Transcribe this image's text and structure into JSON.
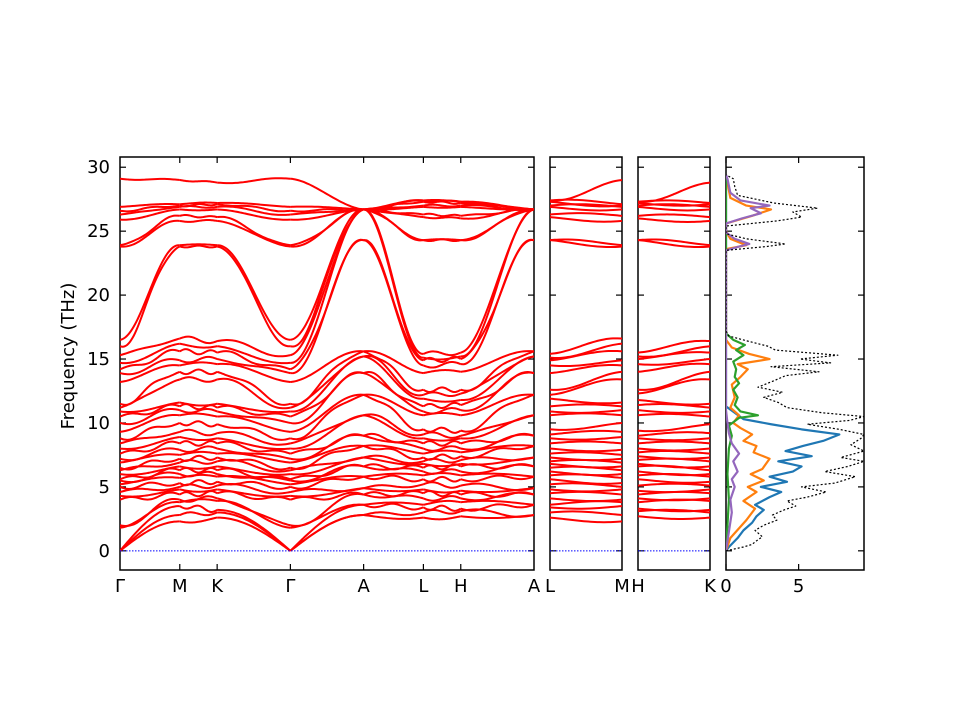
{
  "chart_data": {
    "type": "line",
    "ylabel": "Frequency (THz)",
    "ylim": [
      -1.5,
      30.8
    ],
    "yticks": [
      0,
      5,
      10,
      15,
      20,
      25,
      30
    ],
    "colors": {
      "bands": "#ff0000",
      "zero_line": "#0000ff",
      "dos_total": "#000000",
      "pdos": [
        "#1f77b4",
        "#ff7f0e",
        "#2ca02c",
        "#9467bd"
      ]
    },
    "panels": [
      {
        "id": "p1",
        "segments": [
          {
            "from": "Γ",
            "to": "M",
            "length": 0.4
          },
          {
            "from": "M",
            "to": "K",
            "length": 0.25
          },
          {
            "from": "K",
            "to": "Γ",
            "length": 0.49
          },
          {
            "from": "Γ",
            "to": "A",
            "length": 0.49
          },
          {
            "from": "A",
            "to": "L",
            "length": 0.4
          },
          {
            "from": "L",
            "to": "H",
            "length": 0.25
          },
          {
            "from": "H",
            "to": "A",
            "length": 0.49
          }
        ],
        "ticks": [
          "Γ",
          "M",
          "K",
          "Γ",
          "A",
          "L",
          "H",
          "A"
        ],
        "bands": {
          "gamma": [
            0,
            0,
            0,
            1.8,
            2.0,
            4.0,
            4.3,
            4.6,
            5.0,
            5.2,
            5.5,
            5.6,
            6.0,
            6.3,
            6.5,
            6.9,
            7.2,
            7.6,
            8.0,
            8.4,
            8.8,
            9.3,
            10.0,
            10.5,
            10.9,
            11.2,
            11.5,
            13.2,
            13.9,
            14.2,
            14.7,
            15.3,
            16.0,
            16.5,
            23.8,
            23.9,
            25.9,
            26.3,
            26.6,
            26.9,
            29.1
          ],
          "A": [
            2.8,
            2.8,
            3.6,
            3.6,
            4.4,
            4.4,
            4.9,
            4.9,
            5.8,
            5.8,
            6.6,
            6.6,
            7.3,
            7.3,
            8.2,
            8.2,
            9.0,
            9.0,
            10.6,
            10.6,
            12.2,
            12.2,
            13.9,
            13.9,
            15.2,
            15.2,
            15.6,
            15.6,
            24.3,
            24.3,
            26.7,
            26.7,
            26.7,
            26.7,
            26.7,
            26.7,
            26.7,
            26.7,
            26.7,
            26.7,
            26.7
          ],
          "M": [
            2.3,
            2.8,
            3.5,
            3.8,
            4.0,
            4.4,
            4.8,
            5.0,
            5.3,
            5.7,
            6.0,
            6.3,
            6.6,
            6.9,
            7.2,
            7.5,
            7.9,
            8.4,
            8.9,
            9.3,
            10.0,
            10.6,
            11.0,
            11.3,
            11.6,
            13.4,
            14.0,
            14.5,
            14.9,
            15.6,
            16.2,
            16.6,
            23.8,
            23.9,
            25.8,
            26.2,
            26.7,
            26.9,
            27.0,
            27.1,
            29.0
          ],
          "K": [
            2.6,
            3.0,
            3.2,
            3.9,
            4.1,
            4.5,
            4.8,
            5.1,
            5.4,
            5.8,
            6.0,
            6.3,
            6.6,
            7.0,
            7.3,
            7.6,
            8.0,
            8.4,
            8.8,
            9.2,
            9.9,
            10.5,
            10.9,
            11.2,
            11.5,
            13.4,
            14.0,
            14.6,
            15.0,
            15.5,
            16.0,
            16.4,
            23.8,
            23.9,
            25.8,
            26.1,
            26.7,
            26.9,
            27.1,
            27.2,
            28.8
          ],
          "L": [
            2.6,
            3.0,
            3.4,
            3.6,
            4.1,
            4.5,
            4.8,
            5.2,
            5.6,
            5.9,
            6.2,
            6.5,
            6.8,
            7.0,
            7.3,
            7.6,
            8.0,
            8.4,
            8.8,
            9.1,
            9.5,
            10.6,
            10.9,
            11.3,
            11.9,
            12.2,
            12.6,
            13.9,
            14.5,
            14.9,
            15.1,
            15.4,
            24.3,
            24.3,
            26.1,
            26.3,
            26.9,
            27.0,
            27.3,
            27.4,
            27.4
          ],
          "H": [
            2.7,
            3.1,
            3.3,
            3.8,
            4.1,
            4.4,
            4.7,
            5.1,
            5.6,
            5.9,
            6.2,
            6.6,
            6.8,
            7.1,
            7.4,
            7.7,
            8.0,
            8.4,
            8.8,
            9.0,
            9.4,
            10.6,
            11.0,
            11.4,
            11.8,
            12.3,
            12.6,
            14.0,
            14.6,
            15.0,
            15.2,
            15.5,
            24.3,
            24.3,
            26.0,
            26.2,
            26.9,
            27.0,
            27.2,
            27.3,
            27.3
          ]
        }
      },
      {
        "id": "p2",
        "from": "L",
        "to": "M",
        "ticks": [
          "L",
          "M"
        ]
      },
      {
        "id": "p3",
        "from": "H",
        "to": "K",
        "ticks": [
          "H",
          "K"
        ]
      },
      {
        "id": "dos",
        "xlim": [
          0,
          9.5
        ],
        "xticks": [
          0,
          5
        ],
        "total": [
          [
            0.0,
            0.0
          ],
          [
            0.4,
            0.1
          ],
          [
            1.2,
            0.3
          ],
          [
            1.8,
            0.5
          ],
          [
            2.0,
            0.7
          ],
          [
            2.5,
            1.1
          ],
          [
            2.0,
            1.6
          ],
          [
            2.6,
            2.0
          ],
          [
            3.5,
            2.4
          ],
          [
            3.2,
            2.8
          ],
          [
            4.0,
            3.2
          ],
          [
            4.8,
            3.5
          ],
          [
            4.2,
            3.9
          ],
          [
            5.6,
            4.2
          ],
          [
            6.9,
            4.6
          ],
          [
            5.2,
            5.0
          ],
          [
            7.5,
            5.3
          ],
          [
            8.9,
            5.8
          ],
          [
            6.8,
            6.2
          ],
          [
            8.4,
            6.6
          ],
          [
            9.5,
            7.0
          ],
          [
            7.9,
            7.3
          ],
          [
            9.5,
            7.8
          ],
          [
            8.6,
            8.3
          ],
          [
            9.3,
            8.8
          ],
          [
            9.5,
            9.1
          ],
          [
            7.8,
            9.5
          ],
          [
            5.6,
            9.9
          ],
          [
            8.5,
            10.2
          ],
          [
            9.5,
            10.5
          ],
          [
            6.6,
            10.8
          ],
          [
            4.2,
            11.2
          ],
          [
            3.6,
            11.6
          ],
          [
            2.6,
            12.0
          ],
          [
            3.9,
            12.4
          ],
          [
            2.2,
            12.8
          ],
          [
            3.3,
            13.3
          ],
          [
            4.1,
            13.7
          ],
          [
            6.4,
            14.0
          ],
          [
            3.1,
            14.4
          ],
          [
            7.2,
            14.7
          ],
          [
            5.1,
            15.0
          ],
          [
            7.7,
            15.3
          ],
          [
            3.4,
            15.7
          ],
          [
            2.9,
            16.0
          ],
          [
            1.5,
            16.4
          ],
          [
            0.2,
            16.8
          ],
          [
            0.0,
            17.2
          ],
          [
            0.0,
            23.5
          ],
          [
            2.8,
            23.8
          ],
          [
            4.1,
            24.0
          ],
          [
            1.4,
            24.4
          ],
          [
            0.0,
            24.8
          ],
          [
            0.0,
            25.4
          ],
          [
            3.5,
            25.8
          ],
          [
            5.2,
            26.1
          ],
          [
            4.6,
            26.5
          ],
          [
            6.3,
            26.8
          ],
          [
            3.3,
            27.2
          ],
          [
            0.8,
            27.8
          ],
          [
            0.6,
            28.5
          ],
          [
            0.5,
            29.1
          ],
          [
            0.0,
            29.4
          ]
        ],
        "pdos": [
          {
            "color": "#1f77b4",
            "points": [
              [
                0.0,
                0.0
              ],
              [
                0.2,
                0.3
              ],
              [
                0.8,
                1.0
              ],
              [
                1.2,
                1.6
              ],
              [
                1.8,
                2.2
              ],
              [
                2.1,
                2.7
              ],
              [
                2.6,
                3.2
              ],
              [
                2.0,
                3.6
              ],
              [
                3.0,
                4.2
              ],
              [
                3.8,
                4.6
              ],
              [
                2.4,
                5.0
              ],
              [
                4.2,
                5.4
              ],
              [
                3.0,
                5.8
              ],
              [
                4.6,
                6.2
              ],
              [
                5.2,
                6.6
              ],
              [
                3.6,
                7.0
              ],
              [
                5.9,
                7.4
              ],
              [
                4.1,
                7.8
              ],
              [
                5.3,
                8.2
              ],
              [
                6.7,
                8.6
              ],
              [
                7.8,
                9.1
              ],
              [
                5.2,
                9.5
              ],
              [
                3.1,
                9.9
              ],
              [
                1.2,
                10.3
              ],
              [
                0.6,
                10.8
              ],
              [
                0.0,
                11.3
              ],
              [
                0.0,
                29.4
              ]
            ]
          },
          {
            "color": "#ff7f0e",
            "points": [
              [
                0.0,
                0.0
              ],
              [
                0.3,
                1.0
              ],
              [
                1.4,
                2.4
              ],
              [
                2.0,
                3.3
              ],
              [
                1.2,
                3.9
              ],
              [
                2.1,
                4.6
              ],
              [
                1.5,
                5.0
              ],
              [
                2.6,
                5.5
              ],
              [
                1.7,
                6.0
              ],
              [
                2.5,
                6.4
              ],
              [
                3.0,
                7.2
              ],
              [
                1.9,
                7.7
              ],
              [
                2.1,
                8.2
              ],
              [
                1.2,
                8.6
              ],
              [
                1.8,
                9.1
              ],
              [
                1.0,
                9.6
              ],
              [
                0.5,
                10.0
              ],
              [
                0.9,
                10.6
              ],
              [
                0.3,
                11.2
              ],
              [
                0.6,
                12.0
              ],
              [
                0.4,
                13.0
              ],
              [
                1.0,
                13.6
              ],
              [
                1.5,
                14.2
              ],
              [
                0.8,
                14.6
              ],
              [
                3.0,
                15.0
              ],
              [
                1.6,
                15.4
              ],
              [
                0.4,
                15.9
              ],
              [
                0.0,
                16.5
              ],
              [
                0.0,
                23.6
              ],
              [
                1.4,
                23.9
              ],
              [
                0.3,
                24.4
              ],
              [
                0.0,
                25.0
              ],
              [
                0.0,
                25.6
              ],
              [
                1.8,
                26.2
              ],
              [
                3.1,
                26.7
              ],
              [
                1.4,
                27.0
              ],
              [
                0.3,
                27.6
              ],
              [
                0.0,
                29.4
              ]
            ]
          },
          {
            "color": "#2ca02c",
            "points": [
              [
                0.0,
                0.0
              ],
              [
                0.1,
                2.0
              ],
              [
                0.2,
                4.0
              ],
              [
                0.1,
                6.0
              ],
              [
                0.2,
                8.0
              ],
              [
                0.4,
                9.0
              ],
              [
                0.2,
                9.8
              ],
              [
                0.9,
                10.4
              ],
              [
                2.2,
                10.6
              ],
              [
                1.0,
                10.9
              ],
              [
                0.6,
                11.4
              ],
              [
                0.8,
                12.0
              ],
              [
                0.5,
                12.6
              ],
              [
                0.9,
                13.1
              ],
              [
                0.6,
                13.6
              ],
              [
                0.7,
                14.2
              ],
              [
                0.5,
                14.8
              ],
              [
                1.2,
                15.3
              ],
              [
                0.7,
                15.7
              ],
              [
                1.3,
                16.1
              ],
              [
                0.5,
                16.5
              ],
              [
                0.0,
                17.0
              ],
              [
                0.0,
                29.4
              ]
            ]
          },
          {
            "color": "#9467bd",
            "points": [
              [
                0.0,
                0.0
              ],
              [
                0.2,
                1.5
              ],
              [
                0.4,
                3.0
              ],
              [
                0.3,
                4.0
              ],
              [
                0.6,
                5.0
              ],
              [
                0.4,
                5.6
              ],
              [
                0.8,
                6.2
              ],
              [
                0.5,
                7.0
              ],
              [
                0.9,
                7.6
              ],
              [
                0.4,
                8.4
              ],
              [
                0.2,
                9.2
              ],
              [
                0.1,
                10.0
              ],
              [
                0.0,
                11.0
              ],
              [
                0.0,
                23.5
              ],
              [
                0.9,
                23.8
              ],
              [
                1.6,
                24.0
              ],
              [
                0.6,
                24.4
              ],
              [
                0.0,
                24.9
              ],
              [
                0.0,
                25.6
              ],
              [
                1.1,
                26.0
              ],
              [
                2.4,
                26.4
              ],
              [
                1.7,
                26.8
              ],
              [
                3.0,
                27.0
              ],
              [
                1.0,
                27.4
              ],
              [
                0.3,
                28.0
              ],
              [
                0.1,
                29.1
              ],
              [
                0.0,
                29.4
              ]
            ]
          }
        ]
      }
    ]
  }
}
